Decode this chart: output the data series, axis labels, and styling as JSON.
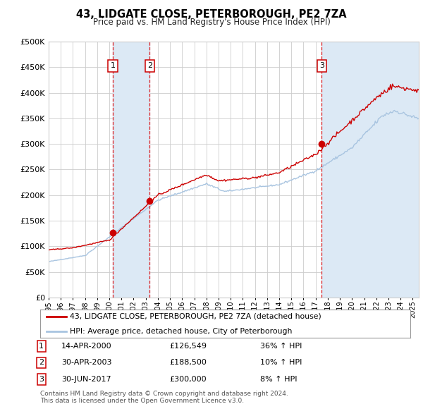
{
  "title": "43, LIDGATE CLOSE, PETERBOROUGH, PE2 7ZA",
  "subtitle": "Price paid vs. HM Land Registry's House Price Index (HPI)",
  "ylim": [
    0,
    500000
  ],
  "yticks": [
    0,
    50000,
    100000,
    150000,
    200000,
    250000,
    300000,
    350000,
    400000,
    450000,
    500000
  ],
  "x_start_year": 1995.0,
  "x_end_year": 2025.5,
  "sales": [
    {
      "num": 1,
      "date_label": "14-APR-2000",
      "price": 126549,
      "pct": "36%",
      "year": 2000.29
    },
    {
      "num": 2,
      "date_label": "30-APR-2003",
      "price": 188500,
      "pct": "10%",
      "year": 2003.33
    },
    {
      "num": 3,
      "date_label": "30-JUN-2017",
      "price": 300000,
      "pct": "8%",
      "year": 2017.5
    }
  ],
  "hpi_color": "#a8c4e0",
  "price_color": "#cc0000",
  "sale_dot_color": "#cc0000",
  "shading_color": "#dce9f5",
  "grid_color": "#cccccc",
  "background_color": "#ffffff",
  "legend_line1": "43, LIDGATE CLOSE, PETERBOROUGH, PE2 7ZA (detached house)",
  "legend_line2": "HPI: Average price, detached house, City of Peterborough",
  "footnote1": "Contains HM Land Registry data © Crown copyright and database right 2024.",
  "footnote2": "This data is licensed under the Open Government Licence v3.0."
}
